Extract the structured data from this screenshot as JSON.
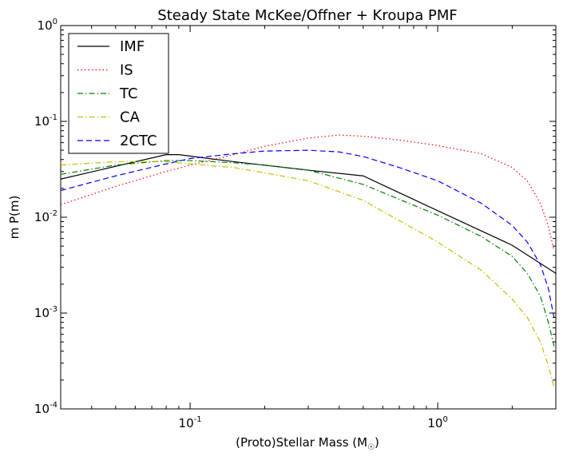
{
  "chart_data": {
    "type": "line",
    "title": "Steady State McKee/Offner + Kroupa PMF",
    "xlabel": "(Proto)Stellar Mass (M",
    "xlabel_sub": "☉",
    "xlabel_close": ")",
    "ylabel": "m P(m)",
    "x_scale": "log",
    "y_scale": "log",
    "xlim": [
      0.03,
      3.0
    ],
    "ylim": [
      0.0001,
      1.0
    ],
    "grid": false,
    "legend_position": "upper-left",
    "x_ticks": [
      {
        "base": "10",
        "exp": "-1",
        "value": 0.1
      },
      {
        "base": "10",
        "exp": "0",
        "value": 1.0
      }
    ],
    "y_ticks": [
      {
        "base": "10",
        "exp": "0",
        "value": 1.0
      },
      {
        "base": "10",
        "exp": "-1",
        "value": 0.1
      },
      {
        "base": "10",
        "exp": "-2",
        "value": 0.01
      },
      {
        "base": "10",
        "exp": "-3",
        "value": 0.001
      },
      {
        "base": "10",
        "exp": "-4",
        "value": 0.0001
      }
    ],
    "series": [
      {
        "name": "IMF",
        "color": "#000000",
        "dash": "solid",
        "points": [
          [
            0.03,
            0.025
          ],
          [
            0.08,
            0.045
          ],
          [
            0.09,
            0.045
          ],
          [
            0.15,
            0.038
          ],
          [
            0.3,
            0.031
          ],
          [
            0.5,
            0.027
          ],
          [
            1.0,
            0.0117
          ],
          [
            2.0,
            0.0051
          ],
          [
            3.0,
            0.0026
          ]
        ]
      },
      {
        "name": "IS",
        "color": "#ff0000",
        "dash": "dotted",
        "points": [
          [
            0.03,
            0.0135
          ],
          [
            0.05,
            0.021
          ],
          [
            0.08,
            0.03
          ],
          [
            0.1,
            0.035
          ],
          [
            0.15,
            0.045
          ],
          [
            0.2,
            0.055
          ],
          [
            0.3,
            0.067
          ],
          [
            0.4,
            0.072
          ],
          [
            0.5,
            0.07
          ],
          [
            0.7,
            0.064
          ],
          [
            1.0,
            0.056
          ],
          [
            1.5,
            0.046
          ],
          [
            2.0,
            0.033
          ],
          [
            2.3,
            0.024
          ],
          [
            2.6,
            0.014
          ],
          [
            2.8,
            0.008
          ],
          [
            2.95,
            0.0045
          ]
        ]
      },
      {
        "name": "TC",
        "color": "#008000",
        "dash": "dashdot",
        "points": [
          [
            0.03,
            0.028
          ],
          [
            0.05,
            0.035
          ],
          [
            0.08,
            0.039
          ],
          [
            0.1,
            0.039
          ],
          [
            0.15,
            0.037
          ],
          [
            0.2,
            0.035
          ],
          [
            0.3,
            0.031
          ],
          [
            0.5,
            0.022
          ],
          [
            1.0,
            0.0105
          ],
          [
            1.5,
            0.0063
          ],
          [
            2.0,
            0.0039
          ],
          [
            2.3,
            0.0026
          ],
          [
            2.6,
            0.0015
          ],
          [
            2.8,
            0.0008
          ],
          [
            2.95,
            0.00045
          ]
        ]
      },
      {
        "name": "CA",
        "color": "#c0c000",
        "dash": "dashdot",
        "points": [
          [
            0.03,
            0.035
          ],
          [
            0.05,
            0.038
          ],
          [
            0.08,
            0.038
          ],
          [
            0.1,
            0.036
          ],
          [
            0.15,
            0.033
          ],
          [
            0.2,
            0.029
          ],
          [
            0.3,
            0.024
          ],
          [
            0.5,
            0.015
          ],
          [
            1.0,
            0.0055
          ],
          [
            1.5,
            0.0028
          ],
          [
            2.0,
            0.0014
          ],
          [
            2.3,
            0.0009
          ],
          [
            2.6,
            0.0005
          ],
          [
            2.8,
            0.00028
          ],
          [
            2.95,
            0.00017
          ]
        ]
      },
      {
        "name": "2CTC",
        "color": "#0000ff",
        "dash": "dashed",
        "points": [
          [
            0.03,
            0.019
          ],
          [
            0.05,
            0.027
          ],
          [
            0.08,
            0.036
          ],
          [
            0.1,
            0.041
          ],
          [
            0.15,
            0.046
          ],
          [
            0.2,
            0.049
          ],
          [
            0.3,
            0.05
          ],
          [
            0.4,
            0.048
          ],
          [
            0.5,
            0.043
          ],
          [
            0.7,
            0.033
          ],
          [
            1.0,
            0.024
          ],
          [
            1.5,
            0.014
          ],
          [
            2.0,
            0.0082
          ],
          [
            2.3,
            0.0055
          ],
          [
            2.6,
            0.0032
          ],
          [
            2.8,
            0.0018
          ],
          [
            2.95,
            0.0009
          ]
        ]
      }
    ]
  }
}
